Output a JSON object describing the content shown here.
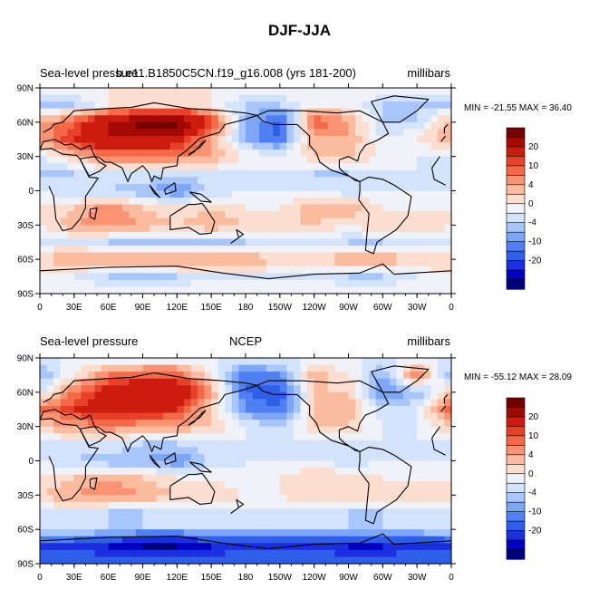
{
  "title": "DJF-JJA",
  "chart_data": [
    {
      "type": "heatmap",
      "title_left": "Sea-level pressure",
      "title_center": "b.e11.B1850C5CN.f19_g16.008 (yrs 181-200)",
      "title_right": "millibars",
      "min_label": "MIN = -21.55",
      "max_label": "MAX =  36.40",
      "x_ticks": [
        "0",
        "30E",
        "60E",
        "90E",
        "120E",
        "150E",
        "180",
        "150W",
        "120W",
        "90W",
        "60W",
        "30W",
        "0"
      ],
      "y_ticks": [
        "90N",
        "60N",
        "30N",
        "0",
        "30S",
        "60S",
        "90S"
      ],
      "colorbar_labels": [
        "20",
        "10",
        "4",
        "0",
        "-4",
        "-10",
        "-20"
      ],
      "contour_levels": [
        -25,
        -20,
        -15,
        -10,
        -8,
        -6,
        -4,
        -2,
        0,
        2,
        4,
        6,
        8,
        10,
        15,
        20,
        25
      ],
      "palette": [
        "#00007a",
        "#0000c2",
        "#1b2fe0",
        "#2f5fe8",
        "#4f7ff2",
        "#7ea6f7",
        "#a9c6fa",
        "#d3e3fb",
        "#f0f2f7",
        "#fbded0",
        "#fbbb9f",
        "#f89474",
        "#f46a48",
        "#e8412a",
        "#cc1c0f",
        "#a30a05",
        "#750000"
      ],
      "field": {
        "lon_start": 0,
        "lon_step": 30,
        "lat_start": 90,
        "lat_step": -15,
        "values": [
          [
            0,
            0,
            0,
            0,
            0,
            0,
            0,
            0,
            0,
            0,
            0,
            0,
            0
          ],
          [
            -4,
            -4,
            0,
            2,
            2,
            0,
            -4,
            -4,
            0,
            0,
            -4,
            -4,
            -4
          ],
          [
            4,
            8,
            15,
            22,
            22,
            10,
            -6,
            -12,
            8,
            4,
            -4,
            -4,
            4
          ],
          [
            4,
            10,
            15,
            15,
            12,
            4,
            -6,
            -10,
            4,
            4,
            -2,
            0,
            4
          ],
          [
            -2,
            2,
            6,
            6,
            6,
            4,
            0,
            -2,
            2,
            2,
            0,
            -2,
            -2
          ],
          [
            -4,
            -4,
            -2,
            -2,
            -4,
            -2,
            -2,
            -2,
            -4,
            -4,
            -2,
            -2,
            -4
          ],
          [
            -2,
            -4,
            -4,
            -6,
            -8,
            -4,
            -2,
            -2,
            -2,
            -4,
            -2,
            -2,
            -2
          ],
          [
            0,
            2,
            6,
            2,
            0,
            2,
            0,
            0,
            4,
            4,
            0,
            0,
            0
          ],
          [
            0,
            4,
            6,
            4,
            2,
            4,
            2,
            2,
            2,
            0,
            2,
            2,
            0
          ],
          [
            -2,
            -2,
            -4,
            -4,
            -4,
            -4,
            -4,
            -2,
            -2,
            -4,
            -4,
            -2,
            -2
          ],
          [
            2,
            4,
            4,
            4,
            6,
            4,
            4,
            2,
            2,
            4,
            4,
            2,
            2
          ],
          [
            0,
            -2,
            -4,
            -6,
            -4,
            -2,
            -2,
            -2,
            -2,
            -4,
            -4,
            -2,
            0
          ],
          [
            0,
            0,
            0,
            0,
            0,
            0,
            0,
            0,
            0,
            0,
            0,
            0,
            0
          ]
        ]
      }
    },
    {
      "type": "heatmap",
      "title_left": "Sea-level pressure",
      "title_center": "NCEP",
      "title_right": "millibars",
      "min_label": "MIN = -55.12",
      "max_label": "MAX =  28.09",
      "x_ticks": [
        "0",
        "30E",
        "60E",
        "90E",
        "120E",
        "150E",
        "180",
        "150W",
        "120W",
        "90W",
        "60W",
        "30W",
        "0"
      ],
      "y_ticks": [
        "90N",
        "60N",
        "30N",
        "0",
        "30S",
        "60S",
        "90S"
      ],
      "colorbar_labels": [
        "20",
        "10",
        "4",
        "0",
        "-4",
        "-10",
        "-20"
      ],
      "contour_levels": [
        -25,
        -20,
        -15,
        -10,
        -8,
        -6,
        -4,
        -2,
        0,
        2,
        4,
        6,
        8,
        10,
        15,
        20,
        25
      ],
      "palette": [
        "#00007a",
        "#0000c2",
        "#1b2fe0",
        "#2f5fe8",
        "#4f7ff2",
        "#7ea6f7",
        "#a9c6fa",
        "#d3e3fb",
        "#f0f2f7",
        "#fbded0",
        "#fbbb9f",
        "#f89474",
        "#f46a48",
        "#e8412a",
        "#cc1c0f",
        "#a30a05",
        "#750000"
      ],
      "field": {
        "lon_start": 0,
        "lon_step": 30,
        "lat_start": 90,
        "lat_step": -15,
        "values": [
          [
            -2,
            -2,
            -2,
            -2,
            -2,
            -2,
            -2,
            -2,
            -2,
            -2,
            -2,
            -2,
            -2
          ],
          [
            -6,
            0,
            6,
            8,
            8,
            0,
            -10,
            -8,
            4,
            0,
            -6,
            6,
            -6
          ],
          [
            -2,
            6,
            12,
            15,
            15,
            4,
            -10,
            -12,
            2,
            2,
            -8,
            -6,
            2
          ],
          [
            6,
            10,
            12,
            12,
            10,
            2,
            -8,
            -10,
            2,
            4,
            -4,
            -2,
            8
          ],
          [
            2,
            4,
            6,
            4,
            4,
            2,
            -2,
            -4,
            2,
            2,
            -2,
            -2,
            2
          ],
          [
            -2,
            -2,
            -2,
            -4,
            -4,
            -2,
            -2,
            -2,
            -2,
            -2,
            -2,
            -2,
            -2
          ],
          [
            -2,
            -4,
            -6,
            -6,
            -8,
            -4,
            -2,
            -2,
            -2,
            -4,
            -2,
            -2,
            -2
          ],
          [
            0,
            2,
            4,
            2,
            0,
            0,
            -2,
            0,
            2,
            2,
            0,
            0,
            0
          ],
          [
            2,
            4,
            6,
            4,
            2,
            2,
            0,
            0,
            2,
            2,
            2,
            2,
            2
          ],
          [
            -2,
            -2,
            -4,
            -4,
            -2,
            -2,
            -2,
            -2,
            -2,
            -4,
            -4,
            -2,
            -2
          ],
          [
            -2,
            -2,
            -4,
            -4,
            -4,
            -4,
            -4,
            -4,
            -4,
            -4,
            -4,
            -4,
            -2
          ],
          [
            -15,
            -15,
            -20,
            -25,
            -25,
            -20,
            -15,
            -15,
            -15,
            -20,
            -20,
            -15,
            -15
          ],
          [
            -10,
            -10,
            -10,
            -10,
            -10,
            -10,
            -10,
            -10,
            -10,
            -10,
            -10,
            -10,
            -10
          ]
        ]
      }
    }
  ]
}
